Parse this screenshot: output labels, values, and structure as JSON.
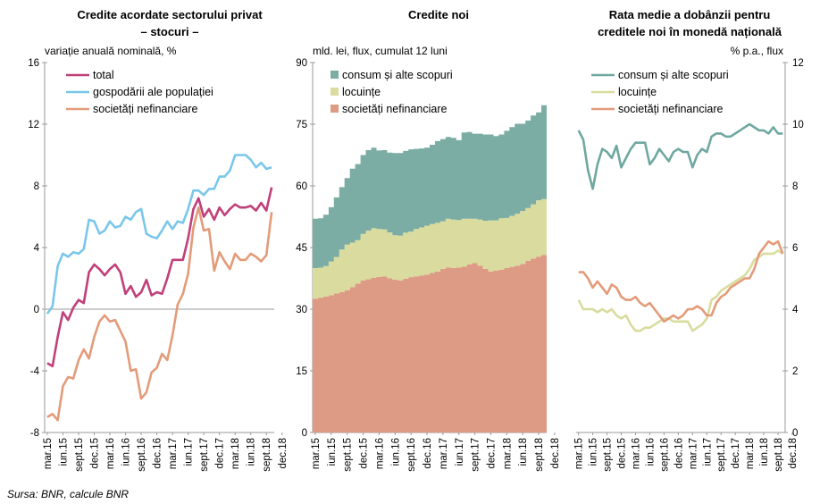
{
  "source": "Sursa: BNR, calcule BNR",
  "chart_data": [
    {
      "type": "line",
      "title_line1": "Credite acordate sectorului privat",
      "title_line2": "– stocuri –",
      "ylabel": "variație anuală nominală, %",
      "ylim": [
        -8,
        16
      ],
      "yticks": [
        "16",
        "12",
        "8",
        "4",
        "0",
        "-4",
        "-8"
      ],
      "xtick_labels": [
        "mar.15",
        "iun.15",
        "sept.15",
        "dec.15",
        "mar.16",
        "iun.16",
        "sept.16",
        "dec.16",
        "mar.17",
        "iun.17",
        "sept.17",
        "dec.17",
        "mar.18",
        "iun.18",
        "sept.18",
        "dec.18"
      ],
      "legend": "top-left",
      "series": [
        {
          "name": "total",
          "color": "#c0407a",
          "values": [
            -3.5,
            -3.7,
            -1.8,
            -0.2,
            -0.7,
            0.1,
            0.6,
            0.4,
            2.4,
            2.9,
            2.6,
            2.2,
            2.6,
            2.9,
            2.4,
            1.0,
            1.5,
            0.8,
            1.1,
            1.9,
            0.9,
            1.1,
            1.0,
            2.0,
            3.2,
            3.2,
            3.2,
            4.6,
            6.5,
            7.2,
            6.0,
            6.5,
            5.8,
            6.6,
            6.1,
            6.5,
            6.8,
            6.6,
            6.6,
            6.7,
            6.4,
            6.9,
            6.4,
            7.9
          ]
        },
        {
          "name": "gospodării ale populației",
          "color": "#7ac7ea",
          "values": [
            -0.3,
            0.2,
            2.8,
            3.6,
            3.4,
            3.7,
            3.6,
            3.9,
            5.8,
            5.7,
            4.9,
            5.1,
            5.7,
            5.3,
            5.4,
            6.0,
            5.8,
            6.3,
            6.5,
            4.9,
            4.7,
            4.6,
            5.1,
            5.7,
            5.2,
            5.7,
            5.6,
            6.5,
            7.7,
            7.7,
            7.4,
            7.8,
            7.8,
            8.6,
            8.6,
            9.0,
            10.0,
            10.0,
            10.0,
            9.7,
            9.2,
            9.5,
            9.1,
            9.2
          ]
        },
        {
          "name": "societăți nefinanciare",
          "color": "#e39b7a",
          "values": [
            -7.0,
            -6.8,
            -7.2,
            -5.0,
            -4.4,
            -4.5,
            -3.3,
            -2.6,
            -3.2,
            -1.8,
            -0.8,
            -0.4,
            -0.8,
            -0.7,
            -1.4,
            -2.1,
            -4.0,
            -3.9,
            -5.8,
            -5.4,
            -4.1,
            -3.8,
            -2.9,
            -3.3,
            -1.7,
            0.3,
            1.0,
            2.3,
            5.3,
            6.6,
            5.1,
            5.2,
            2.5,
            3.7,
            3.1,
            2.6,
            3.6,
            3.2,
            3.2,
            3.6,
            3.4,
            3.1,
            3.5,
            6.3
          ]
        }
      ]
    },
    {
      "type": "area",
      "stacked": true,
      "title": "Credite noi",
      "ylabel": "mld. lei, flux, cumulat 12 luni",
      "ylim": [
        0,
        90
      ],
      "yticks": [
        "90",
        "75",
        "60",
        "45",
        "30",
        "15",
        "0"
      ],
      "xtick_labels": [
        "mar.15",
        "iun.15",
        "sept.15",
        "dec.15",
        "mar.16",
        "iun.16",
        "sept.16",
        "dec.16",
        "mar.17",
        "iun.17",
        "sept.17",
        "dec.17",
        "mar.18",
        "iun.18",
        "sept.18",
        "dec.18"
      ],
      "legend": "top-left",
      "series": [
        {
          "name": "societăți nefinanciare",
          "color": "#dd9a84",
          "values": [
            32.5,
            32.8,
            33.1,
            33.4,
            33.8,
            34.2,
            34.6,
            35.4,
            36.2,
            37.0,
            37.3,
            37.6,
            37.9,
            38.0,
            37.5,
            37.2,
            37.0,
            37.4,
            37.8,
            38.0,
            38.2,
            38.4,
            38.8,
            39.2,
            39.8,
            40.1,
            40.0,
            40.1,
            40.4,
            40.9,
            41.2,
            40.6,
            39.8,
            39.2,
            39.4,
            39.6,
            40.0,
            40.3,
            40.6,
            41.0,
            41.8,
            42.3,
            42.8,
            43.2
          ]
        },
        {
          "name": "locuințe",
          "color": "#d9dc9e",
          "values": [
            7.5,
            7.3,
            7.4,
            8.2,
            8.9,
            10.3,
            11.1,
            10.8,
            10.6,
            11.3,
            11.8,
            12.1,
            11.6,
            11.4,
            11.2,
            10.8,
            10.9,
            11.2,
            11.1,
            11.5,
            11.7,
            11.9,
            11.9,
            11.8,
            11.6,
            11.9,
            11.8,
            11.6,
            11.6,
            11.1,
            10.8,
            11.2,
            11.7,
            12.4,
            12.2,
            12.5,
            12.2,
            12.4,
            12.6,
            12.9,
            12.8,
            13.2,
            13.7,
            13.6
          ]
        },
        {
          "name": "consum și alte scopuri",
          "color": "#7bada4",
          "values": [
            12.0,
            12.0,
            12.5,
            13.2,
            14.5,
            15.2,
            16.2,
            18.0,
            18.5,
            19.2,
            19.6,
            19.6,
            19.1,
            19.3,
            19.4,
            20.0,
            20.1,
            19.9,
            20.0,
            19.5,
            19.2,
            19.0,
            19.3,
            19.9,
            20.0,
            19.9,
            19.9,
            19.4,
            21.0,
            21.1,
            20.7,
            20.9,
            21.0,
            20.9,
            20.5,
            20.4,
            21.2,
            21.6,
            21.9,
            21.2,
            21.3,
            21.6,
            21.4,
            22.8
          ]
        }
      ]
    },
    {
      "type": "line",
      "title_line1": "Rata medie a dobânzii pentru",
      "title_line2": "creditele noi în monedă națională",
      "ylabel": "% p.a., flux",
      "ylim": [
        0,
        12
      ],
      "yticks": [
        "12",
        "10",
        "8",
        "6",
        "4",
        "2",
        "0"
      ],
      "xtick_labels": [
        "mar.15",
        "iun.15",
        "sept.15",
        "dec.15",
        "mar.16",
        "iun.16",
        "sept.16",
        "dec.16",
        "mar.17",
        "iun.17",
        "sept.17",
        "dec.17",
        "mar.18",
        "iun.18",
        "sept.18",
        "dec.18"
      ],
      "legend": "top-left",
      "series": [
        {
          "name": "consum și alte scopuri",
          "color": "#6fa8a0",
          "values": [
            9.8,
            9.5,
            8.5,
            7.9,
            8.7,
            9.2,
            9.1,
            8.9,
            9.3,
            8.6,
            8.9,
            9.2,
            9.4,
            9.4,
            9.4,
            8.7,
            8.9,
            9.2,
            9.0,
            8.8,
            9.1,
            9.2,
            9.1,
            9.1,
            8.6,
            9.0,
            9.2,
            9.1,
            9.6,
            9.7,
            9.7,
            9.6,
            9.6,
            9.7,
            9.8,
            9.9,
            10.0,
            9.9,
            9.8,
            9.8,
            9.7,
            9.9,
            9.7,
            9.7
          ]
        },
        {
          "name": "locuințe",
          "color": "#d9dc9e",
          "values": [
            4.3,
            4.0,
            4.0,
            4.0,
            3.9,
            4.0,
            3.9,
            4.0,
            3.8,
            3.7,
            3.8,
            3.5,
            3.3,
            3.3,
            3.4,
            3.4,
            3.5,
            3.6,
            3.7,
            3.7,
            3.6,
            3.6,
            3.6,
            3.6,
            3.3,
            3.4,
            3.5,
            3.7,
            4.3,
            4.4,
            4.6,
            4.7,
            4.8,
            4.9,
            5.0,
            5.1,
            5.3,
            5.6,
            5.7,
            5.8,
            5.8,
            5.8,
            5.9,
            5.8
          ]
        },
        {
          "name": "societăți nefinanciare",
          "color": "#e39b7a",
          "values": [
            5.2,
            5.2,
            5.0,
            4.7,
            4.9,
            4.7,
            4.5,
            4.8,
            4.7,
            4.4,
            4.3,
            4.3,
            4.4,
            4.2,
            4.1,
            4.2,
            4.0,
            3.8,
            3.6,
            3.7,
            3.8,
            3.7,
            3.8,
            4.0,
            4.0,
            4.1,
            4.0,
            3.8,
            3.8,
            4.2,
            4.4,
            4.5,
            4.7,
            4.8,
            4.9,
            5.0,
            5.0,
            5.3,
            5.8,
            6.0,
            6.2,
            6.1,
            6.2,
            5.8
          ]
        }
      ]
    }
  ]
}
